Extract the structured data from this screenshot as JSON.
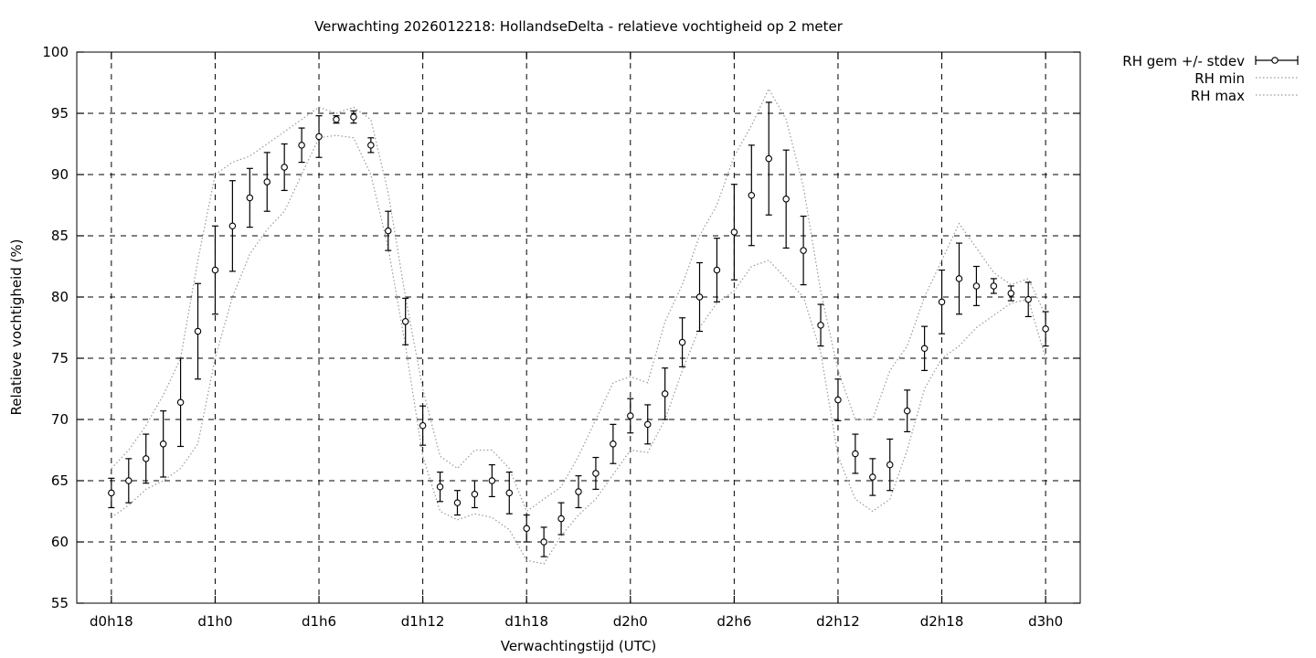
{
  "chart_data": {
    "type": "line",
    "title": "Verwachting 2026012218: HollandseDelta - relatieve vochtigheid op 2 meter",
    "xlabel": "Verwachtingstijd (UTC)",
    "ylabel": "Relatieve vochtigheid (%)",
    "xlim": [
      -2,
      56
    ],
    "ylim": [
      55,
      100
    ],
    "x_unit": "hours from d0h18",
    "x_ticks": [
      {
        "x": 0,
        "label": "d0h18"
      },
      {
        "x": 6,
        "label": "d1h0"
      },
      {
        "x": 12,
        "label": "d1h6"
      },
      {
        "x": 18,
        "label": "d1h12"
      },
      {
        "x": 24,
        "label": "d1h18"
      },
      {
        "x": 30,
        "label": "d2h0"
      },
      {
        "x": 36,
        "label": "d2h6"
      },
      {
        "x": 42,
        "label": "d2h12"
      },
      {
        "x": 48,
        "label": "d2h18"
      },
      {
        "x": 54,
        "label": "d3h0"
      }
    ],
    "y_ticks": [
      55,
      60,
      65,
      70,
      75,
      80,
      85,
      90,
      95,
      100
    ],
    "grid": true,
    "legend_position": "outside-top-right",
    "legend": [
      "RH gem +/- stdev",
      "RH min",
      "RH max"
    ],
    "series": [
      {
        "name": "RH gem +/- stdev",
        "style": "points-errorbars",
        "x": [
          0,
          1,
          2,
          3,
          4,
          5,
          6,
          7,
          8,
          9,
          10,
          11,
          12,
          13,
          14,
          15,
          16,
          17,
          18,
          19,
          20,
          21,
          22,
          23,
          24,
          25,
          26,
          27,
          28,
          29,
          30,
          31,
          32,
          33,
          34,
          35,
          36,
          37,
          38,
          39,
          40,
          41,
          42,
          43,
          44,
          45,
          46,
          47,
          48,
          49,
          50,
          51,
          52,
          53,
          54
        ],
        "values": [
          64.0,
          65.0,
          66.8,
          68.0,
          71.4,
          77.2,
          82.2,
          85.8,
          88.1,
          89.4,
          90.6,
          92.4,
          93.1,
          94.5,
          94.7,
          92.4,
          85.4,
          78.0,
          69.5,
          64.5,
          63.2,
          63.9,
          65.0,
          64.0,
          61.1,
          60.0,
          61.9,
          64.1,
          65.6,
          68.0,
          70.3,
          69.6,
          72.1,
          76.3,
          80.0,
          82.2,
          85.3,
          88.3,
          91.3,
          88.0,
          83.8,
          77.7,
          71.6,
          67.2,
          65.3,
          66.3,
          70.7,
          75.8,
          79.6,
          81.5,
          80.9,
          80.9,
          80.3,
          79.8,
          77.4
        ],
        "stdev": [
          1.2,
          1.8,
          2.0,
          2.7,
          3.6,
          3.9,
          3.6,
          3.7,
          2.4,
          2.4,
          1.9,
          1.4,
          1.7,
          0.3,
          0.5,
          0.6,
          1.6,
          1.9,
          1.6,
          1.2,
          1.0,
          1.1,
          1.3,
          1.7,
          1.1,
          1.2,
          1.3,
          1.3,
          1.3,
          1.6,
          1.4,
          1.6,
          2.1,
          2.0,
          2.8,
          2.6,
          3.9,
          4.1,
          4.6,
          4.0,
          2.8,
          1.7,
          1.7,
          1.6,
          1.5,
          2.1,
          1.7,
          1.8,
          2.6,
          2.9,
          1.6,
          0.6,
          0.6,
          1.4,
          1.4
        ]
      },
      {
        "name": "RH min",
        "style": "dotted",
        "x": [
          0,
          1,
          2,
          3,
          4,
          5,
          6,
          7,
          8,
          9,
          10,
          11,
          12,
          13,
          14,
          15,
          16,
          17,
          18,
          19,
          20,
          21,
          22,
          23,
          24,
          25,
          26,
          27,
          28,
          29,
          30,
          31,
          32,
          33,
          34,
          35,
          36,
          37,
          38,
          39,
          40,
          41,
          42,
          43,
          44,
          45,
          46,
          47,
          48,
          49,
          50,
          51,
          52,
          53,
          54
        ],
        "values": [
          62.0,
          63.0,
          64.3,
          65.0,
          66.0,
          68.0,
          75.0,
          80.0,
          83.5,
          85.5,
          87.0,
          90.0,
          93.0,
          93.2,
          93.0,
          90.0,
          84.0,
          76.0,
          67.0,
          62.5,
          61.8,
          62.3,
          62.0,
          61.0,
          58.5,
          58.2,
          60.5,
          62.2,
          63.5,
          65.5,
          67.5,
          67.3,
          70.0,
          74.0,
          77.5,
          79.5,
          80.5,
          82.5,
          83.0,
          81.5,
          80.0,
          75.5,
          67.0,
          63.5,
          62.5,
          63.5,
          67.5,
          72.5,
          75.0,
          76.0,
          77.5,
          78.5,
          79.5,
          79.8,
          75.0
        ]
      },
      {
        "name": "RH max",
        "style": "dotted",
        "x": [
          0,
          1,
          2,
          3,
          4,
          5,
          6,
          7,
          8,
          9,
          10,
          11,
          12,
          13,
          14,
          15,
          16,
          17,
          18,
          19,
          20,
          21,
          22,
          23,
          24,
          25,
          26,
          27,
          28,
          29,
          30,
          31,
          32,
          33,
          34,
          35,
          36,
          37,
          38,
          39,
          40,
          41,
          42,
          43,
          44,
          45,
          46,
          47,
          48,
          49,
          50,
          51,
          52,
          53,
          54
        ],
        "values": [
          66.0,
          67.5,
          69.5,
          72.0,
          75.0,
          83.0,
          90.0,
          91.0,
          91.5,
          92.5,
          93.5,
          94.5,
          95.5,
          95.0,
          95.5,
          94.5,
          88.5,
          80.0,
          72.5,
          67.0,
          66.0,
          67.5,
          67.5,
          66.0,
          62.5,
          63.5,
          64.5,
          67.0,
          70.0,
          73.0,
          73.5,
          73.0,
          78.0,
          81.0,
          85.0,
          87.5,
          91.5,
          94.0,
          97.0,
          94.5,
          89.0,
          80.5,
          74.0,
          70.0,
          70.0,
          74.0,
          76.0,
          80.0,
          83.0,
          86.0,
          84.0,
          82.0,
          81.0,
          81.5,
          78.5
        ]
      }
    ]
  }
}
